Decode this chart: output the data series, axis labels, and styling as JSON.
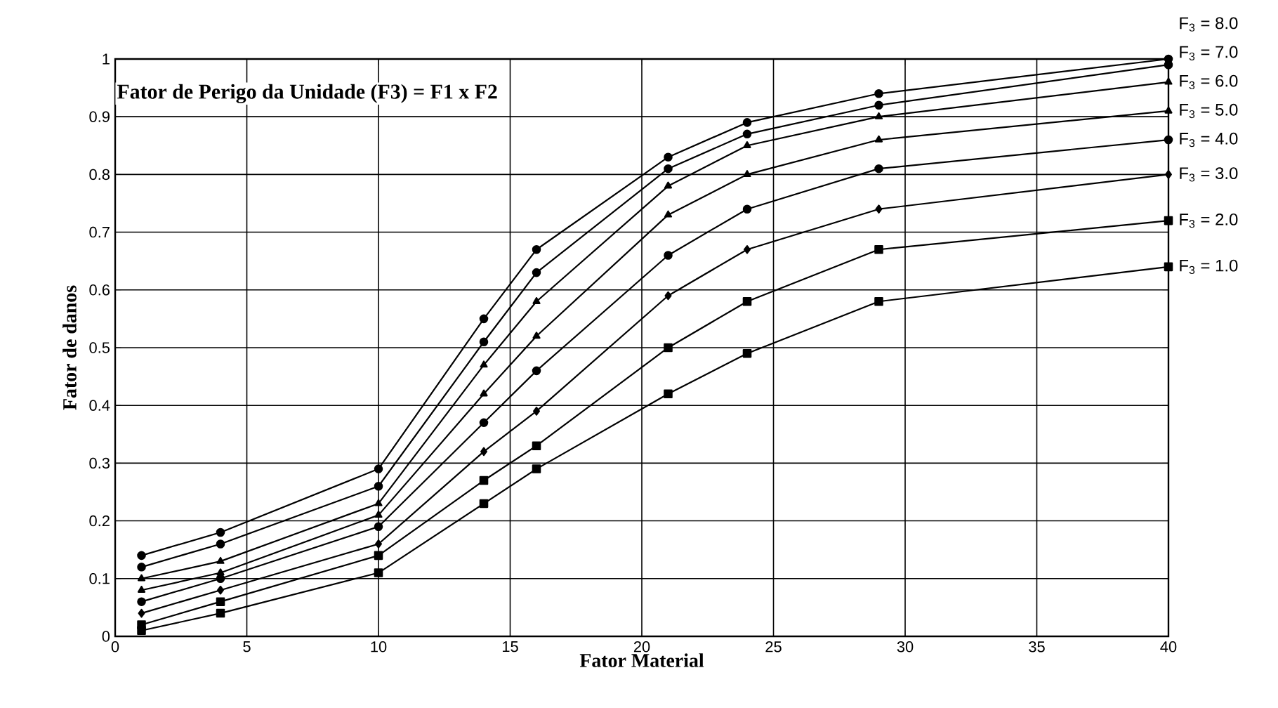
{
  "chart_data": {
    "type": "line",
    "title": "Fator de Perigo da Unidade (F3) = F1 x F2",
    "xlabel": "Fator Material",
    "ylabel": "Fator de danos",
    "x": [
      1,
      4,
      10,
      14,
      16,
      21,
      24,
      29,
      40
    ],
    "series": [
      {
        "name": "F$_{3}$ = 8.0",
        "color": "#000000",
        "marker": "circle",
        "values": [
          0.14,
          0.18,
          0.29,
          0.55,
          0.67,
          0.83,
          0.89,
          0.94,
          1.0
        ]
      },
      {
        "name": "F$_{3}$ = 7.0",
        "color": "#000000",
        "marker": "circle",
        "values": [
          0.12,
          0.16,
          0.26,
          0.51,
          0.63,
          0.81,
          0.87,
          0.92,
          0.99
        ]
      },
      {
        "name": "F$_{3}$ = 6.0",
        "color": "#000000",
        "marker": "triangle",
        "values": [
          0.1,
          0.13,
          0.23,
          0.47,
          0.58,
          0.78,
          0.85,
          0.9,
          0.96
        ]
      },
      {
        "name": "F$_{3}$ = 5.0",
        "color": "#000000",
        "marker": "triangle",
        "values": [
          0.08,
          0.11,
          0.21,
          0.42,
          0.52,
          0.73,
          0.8,
          0.86,
          0.91
        ]
      },
      {
        "name": "F$_{3}$ = 4.0",
        "color": "#000000",
        "marker": "circle",
        "values": [
          0.06,
          0.1,
          0.19,
          0.37,
          0.46,
          0.66,
          0.74,
          0.81,
          0.86
        ]
      },
      {
        "name": "F$_{3}$ = 3.0",
        "color": "#000000",
        "marker": "diamond",
        "values": [
          0.04,
          0.08,
          0.16,
          0.32,
          0.39,
          0.59,
          0.67,
          0.74,
          0.8
        ]
      },
      {
        "name": "F$_{3}$ = 2.0",
        "color": "#000000",
        "marker": "square",
        "values": [
          0.02,
          0.06,
          0.14,
          0.27,
          0.33,
          0.5,
          0.58,
          0.67,
          0.72
        ]
      },
      {
        "name": "F$_{3}$ = 1.0",
        "color": "#000000",
        "marker": "square",
        "values": [
          0.01,
          0.04,
          0.11,
          0.23,
          0.29,
          0.42,
          0.49,
          0.58,
          0.64
        ]
      }
    ],
    "xlim": [
      0,
      40
    ],
    "ylim": [
      0,
      1
    ],
    "xticks": [
      0,
      5,
      10,
      15,
      20,
      25,
      30,
      35,
      40
    ],
    "yticks": [
      0,
      0.1,
      0.2,
      0.3,
      0.4,
      0.5,
      0.6,
      0.7,
      0.8,
      0.9,
      1
    ],
    "grid": true,
    "legend": "right",
    "line_style": "solid"
  }
}
